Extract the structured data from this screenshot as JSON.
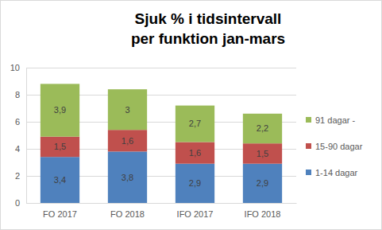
{
  "chart_data": {
    "type": "bar",
    "stacked": true,
    "data_labels": true,
    "grid": true,
    "legend": "right",
    "title": [
      "Sjuk % i tidsintervall",
      "per funktion jan-mars"
    ],
    "categories": [
      "FO 2017",
      "FO 2018",
      "IFO 2017",
      "IFO 2018"
    ],
    "ylim": [
      0,
      10
    ],
    "yticks": [
      0,
      2,
      4,
      6,
      8,
      10
    ],
    "series": [
      {
        "name": "1-14 dagar",
        "color": "#4f81bd",
        "values": [
          3.4,
          3.8,
          2.9,
          2.9
        ],
        "value_labels": [
          "3,4",
          "3,8",
          "2,9",
          "2,9"
        ]
      },
      {
        "name": "15-90 dagar",
        "color": "#c0504d",
        "values": [
          1.5,
          1.6,
          1.6,
          1.5
        ],
        "value_labels": [
          "1,5",
          "1,6",
          "1,6",
          "1,5"
        ]
      },
      {
        "name": "91 dagar -",
        "color": "#9bbb59",
        "values": [
          3.9,
          3,
          2.7,
          2.2
        ],
        "value_labels": [
          "3,9",
          "3",
          "2,7",
          "2,2"
        ]
      }
    ]
  }
}
